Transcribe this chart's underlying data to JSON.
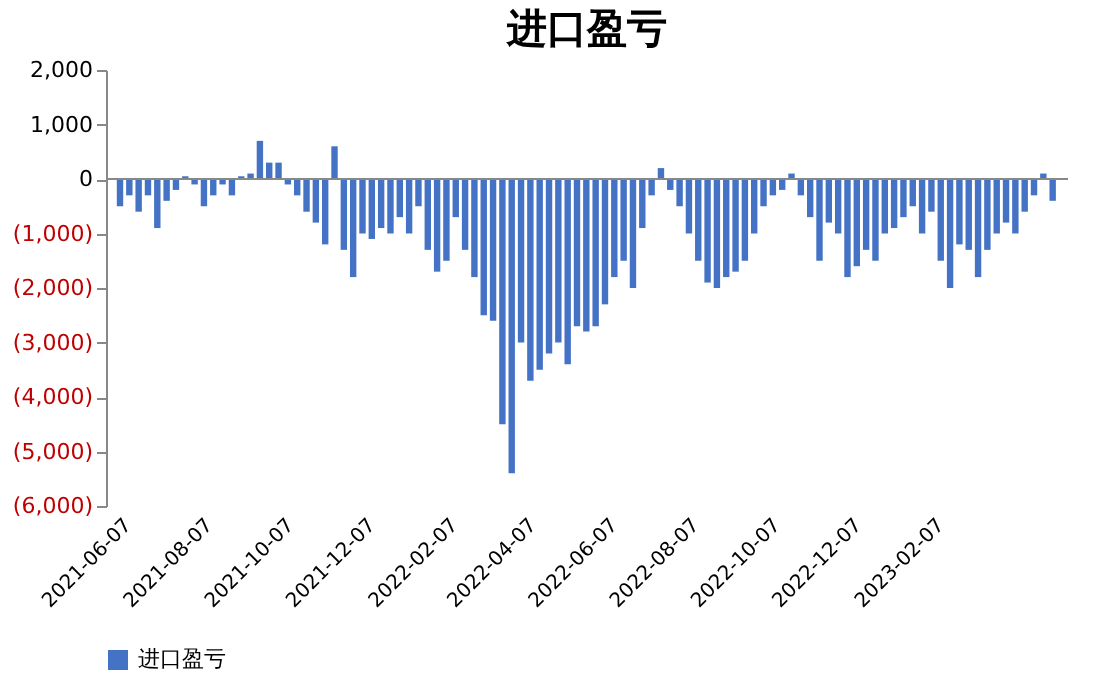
{
  "chart_data": {
    "type": "bar",
    "title": "进口盈亏",
    "x": [
      "2021-06-07",
      "2021-06-14",
      "2021-06-21",
      "2021-06-28",
      "2021-07-05",
      "2021-07-12",
      "2021-07-19",
      "2021-07-26",
      "2021-08-02",
      "2021-08-09",
      "2021-08-16",
      "2021-08-23",
      "2021-08-30",
      "2021-09-06",
      "2021-09-13",
      "2021-09-20",
      "2021-09-27",
      "2021-10-04",
      "2021-10-11",
      "2021-10-18",
      "2021-10-25",
      "2021-11-01",
      "2021-11-08",
      "2021-11-15",
      "2021-11-22",
      "2021-11-29",
      "2021-12-06",
      "2021-12-13",
      "2021-12-20",
      "2021-12-27",
      "2022-01-03",
      "2022-01-10",
      "2022-01-17",
      "2022-01-24",
      "2022-01-31",
      "2022-02-07",
      "2022-02-14",
      "2022-02-21",
      "2022-02-28",
      "2022-03-07",
      "2022-03-14",
      "2022-03-21",
      "2022-03-28",
      "2022-04-04",
      "2022-04-11",
      "2022-04-18",
      "2022-04-25",
      "2022-05-02",
      "2022-05-09",
      "2022-05-16",
      "2022-05-23",
      "2022-05-30",
      "2022-06-06",
      "2022-06-13",
      "2022-06-20",
      "2022-06-27",
      "2022-07-04",
      "2022-07-11",
      "2022-07-18",
      "2022-07-25",
      "2022-08-01",
      "2022-08-08",
      "2022-08-15",
      "2022-08-22",
      "2022-08-29",
      "2022-09-05",
      "2022-09-12",
      "2022-09-19",
      "2022-09-26",
      "2022-10-03",
      "2022-10-10",
      "2022-10-17",
      "2022-10-24",
      "2022-10-31",
      "2022-11-07",
      "2022-11-14",
      "2022-11-21",
      "2022-11-28",
      "2022-12-05",
      "2022-12-12",
      "2022-12-19",
      "2022-12-26",
      "2023-01-02",
      "2023-01-09",
      "2023-01-16",
      "2023-01-23",
      "2023-01-30",
      "2023-02-06",
      "2023-02-13",
      "2023-02-20",
      "2023-02-27",
      "2023-03-06",
      "2023-03-13",
      "2023-03-20",
      "2023-03-27",
      "2023-04-03",
      "2023-04-10",
      "2023-04-17",
      "2023-04-24",
      "2023-05-01",
      "2023-05-08"
    ],
    "series": [
      {
        "name": "进口盈亏",
        "color": "#4472c4",
        "values": [
          -500,
          -300,
          -600,
          -300,
          -900,
          -400,
          -200,
          50,
          -100,
          -500,
          -300,
          -100,
          -300,
          50,
          100,
          700,
          300,
          300,
          -100,
          -300,
          -600,
          -800,
          -1200,
          600,
          -1300,
          -1800,
          -1000,
          -1100,
          -900,
          -1000,
          -700,
          -1000,
          -500,
          -1300,
          -1700,
          -1500,
          -700,
          -1300,
          -1800,
          -2500,
          -2600,
          -4500,
          -5400,
          -3000,
          -3700,
          -3500,
          -3200,
          -3000,
          -3400,
          -2700,
          -2800,
          -2700,
          -2300,
          -1800,
          -1500,
          -2000,
          -900,
          -300,
          200,
          -200,
          -500,
          -1000,
          -1500,
          -1900,
          -2000,
          -1800,
          -1700,
          -1500,
          -1000,
          -500,
          -300,
          -200,
          100,
          -300,
          -700,
          -1500,
          -800,
          -1000,
          -1800,
          -1600,
          -1300,
          -1500,
          -1000,
          -900,
          -700,
          -500,
          -1000,
          -600,
          -1500,
          -2000,
          -1200,
          -1300,
          -1800,
          -1300,
          -1000,
          -800,
          -1000,
          -600,
          -300,
          100,
          -400
        ]
      }
    ],
    "xlim": [
      "2021-06-04",
      "2023-05-12"
    ],
    "xticks": [
      "2021-06-07",
      "2021-08-07",
      "2021-10-07",
      "2021-12-07",
      "2022-02-07",
      "2022-04-07",
      "2022-06-07",
      "2022-08-07",
      "2022-10-07",
      "2022-12-07",
      "2023-02-07"
    ],
    "ylim": [
      -6000,
      2000
    ],
    "yticks": [
      {
        "value": 2000,
        "label": "2,000"
      },
      {
        "value": 1000,
        "label": "1,000"
      },
      0,
      {
        "value": -1000,
        "label": "(1,000)"
      },
      {
        "value": -2000,
        "label": "(2,000)"
      },
      {
        "value": -3000,
        "label": "(3,000)"
      },
      {
        "value": -4000,
        "label": "(4,000)"
      },
      {
        "value": -5000,
        "label": "(5,000)"
      },
      {
        "value": -6000,
        "label": "(6,000)"
      }
    ],
    "ref_lines": [
      {
        "axis": "y",
        "value": 0,
        "color": "#888888"
      }
    ],
    "grid": false,
    "legend": "bottom"
  }
}
